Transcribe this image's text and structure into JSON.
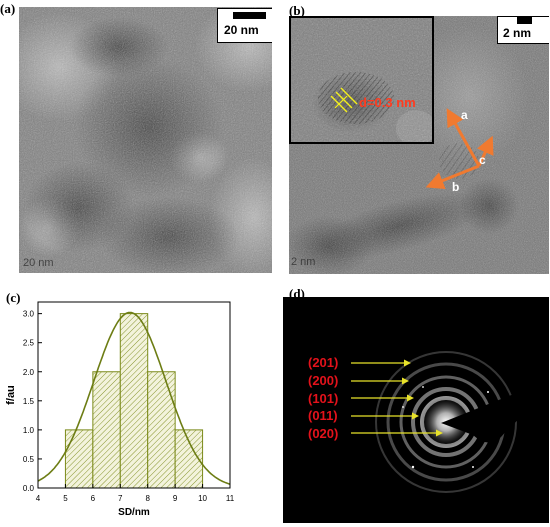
{
  "panels": {
    "a": {
      "label": "(a)",
      "scale_label": "20 nm",
      "faint_scale_label": "20 nm"
    },
    "b": {
      "label": "(b)",
      "scale_label": "2 nm",
      "faint_scale_label": "2 nm",
      "inset_annotation": "d=0.3 nm",
      "arrow_labels": [
        "a",
        "b",
        "c"
      ],
      "annotation_color": "#ff3b1f",
      "arrow_color": "#f07a30"
    },
    "c": {
      "label": "(c)"
    },
    "d": {
      "label": "(d)",
      "planes": [
        "(201)",
        "(200)",
        "(101)",
        "(011)",
        "(020)"
      ],
      "plane_color": "#e3121b",
      "arrow_color": "#e8e22a"
    }
  },
  "chart_data": {
    "type": "bar",
    "subtype": "histogram",
    "bins": [
      [
        5,
        6
      ],
      [
        6,
        7
      ],
      [
        7,
        8
      ],
      [
        8,
        9
      ],
      [
        9,
        10
      ]
    ],
    "values": [
      1,
      2,
      3,
      2,
      1
    ],
    "fit_curve": "gaussian",
    "xlabel": "SD/nm",
    "ylabel": "f/au",
    "xlim": [
      4,
      11
    ],
    "ylim": [
      0,
      3.2
    ],
    "xticks": [
      "4",
      "5",
      "6",
      "7",
      "8",
      "9",
      "10",
      "11"
    ],
    "yticks": [
      "0.0",
      "0.5",
      "1.0",
      "1.5",
      "2.0",
      "2.5",
      "3.0"
    ],
    "bar_color": "#7b8a1a",
    "curve_color": "#6d7d14"
  }
}
